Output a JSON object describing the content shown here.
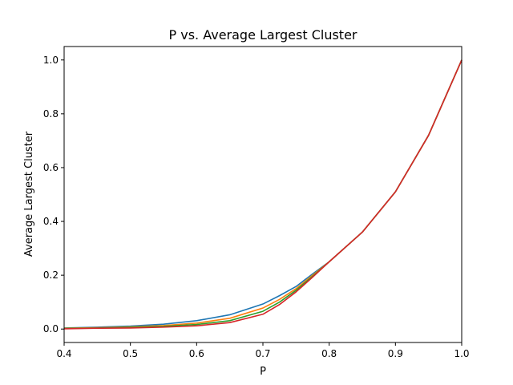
{
  "chart_data": {
    "type": "line",
    "title": "P vs. Average Largest Cluster",
    "xlabel": "P",
    "ylabel": "Average Largest Cluster",
    "xlim": [
      0.4,
      1.0
    ],
    "ylim": [
      -0.05,
      1.05
    ],
    "xticks": [
      0.4,
      0.5,
      0.6,
      0.7,
      0.8,
      0.9,
      1.0
    ],
    "xtick_labels": [
      "0.4",
      "0.5",
      "0.6",
      "0.7",
      "0.8",
      "0.9",
      "1.0"
    ],
    "yticks": [
      0.0,
      0.2,
      0.4,
      0.6,
      0.8,
      1.0
    ],
    "ytick_labels": [
      "0.0",
      "0.2",
      "0.4",
      "0.6",
      "0.8",
      "1.0"
    ],
    "grid": false,
    "legend": false,
    "x": [
      0.4,
      0.45,
      0.5,
      0.55,
      0.6,
      0.65,
      0.7,
      0.725,
      0.75,
      0.775,
      0.8,
      0.85,
      0.9,
      0.95,
      1.0
    ],
    "series": [
      {
        "color": "#1f77b4",
        "values": [
          0.004,
          0.007,
          0.011,
          0.018,
          0.031,
          0.053,
          0.093,
          0.124,
          0.158,
          0.205,
          0.25,
          0.36,
          0.51,
          0.72,
          1.0
        ]
      },
      {
        "color": "#ff7f0e",
        "values": [
          0.003,
          0.005,
          0.008,
          0.013,
          0.022,
          0.04,
          0.078,
          0.11,
          0.15,
          0.2,
          0.25,
          0.36,
          0.51,
          0.72,
          1.0
        ]
      },
      {
        "color": "#2ca02c",
        "values": [
          0.002,
          0.004,
          0.006,
          0.01,
          0.017,
          0.031,
          0.066,
          0.1,
          0.144,
          0.196,
          0.25,
          0.36,
          0.51,
          0.72,
          1.0
        ]
      },
      {
        "color": "#d62728",
        "values": [
          0.001,
          0.003,
          0.004,
          0.007,
          0.012,
          0.024,
          0.055,
          0.091,
          0.138,
          0.193,
          0.25,
          0.36,
          0.51,
          0.72,
          1.0
        ]
      }
    ]
  }
}
